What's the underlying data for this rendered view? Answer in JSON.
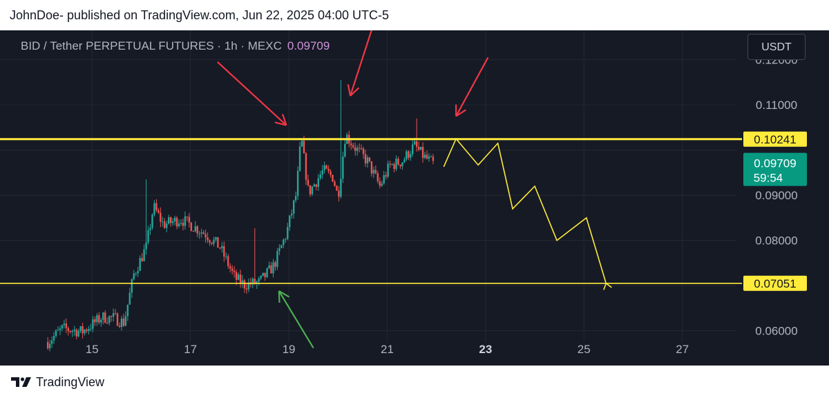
{
  "header": {
    "published": "JohnDoe- published on TradingView.com, Jun 22, 2025 04:00 UTC-5"
  },
  "symbol": {
    "title": "BID / Tether PERPETUAL FUTURES · 1h · MEXC",
    "price": "0.09709"
  },
  "currency_button": {
    "label": "USDT"
  },
  "colors": {
    "background": "#161a25",
    "up": "#26a69a",
    "down": "#ef5350",
    "level": "#ffeb3b",
    "arrow_red": "#f23645",
    "arrow_green": "#4caf50",
    "projection": "#ffeb3b",
    "price_tag": "#089981"
  },
  "chart_data": {
    "type": "candlestick",
    "x_ticks": [
      "15",
      "17",
      "19",
      "21",
      "23",
      "25",
      "27"
    ],
    "x_tick_days": [
      15,
      17,
      19,
      21,
      23,
      25,
      27
    ],
    "bold_tick": "23",
    "y_ticks": [
      "0.12000",
      "0.11000",
      "0.09000",
      "0.08000",
      "0.06000"
    ],
    "y_tick_values": [
      0.12,
      0.11,
      0.09,
      0.08,
      0.06
    ],
    "ylim": [
      0.0575,
      0.1265
    ],
    "xlim": [
      13.55,
      28.1
    ],
    "price_path": [
      [
        14.1,
        0.0575
      ],
      [
        14.4,
        0.0605
      ],
      [
        14.8,
        0.0598
      ],
      [
        15.2,
        0.063
      ],
      [
        15.45,
        0.0628
      ],
      [
        15.65,
        0.0618
      ],
      [
        15.85,
        0.0725
      ],
      [
        16.1,
        0.0785
      ],
      [
        16.25,
        0.0875
      ],
      [
        16.45,
        0.0835
      ],
      [
        16.8,
        0.0847
      ],
      [
        17.0,
        0.0835
      ],
      [
        17.3,
        0.0815
      ],
      [
        17.6,
        0.0785
      ],
      [
        17.9,
        0.0717
      ],
      [
        18.1,
        0.0702
      ],
      [
        18.4,
        0.0707
      ],
      [
        18.7,
        0.0745
      ],
      [
        18.95,
        0.0815
      ],
      [
        19.15,
        0.0902
      ],
      [
        19.25,
        0.1028
      ],
      [
        19.4,
        0.0905
      ],
      [
        19.7,
        0.0955
      ],
      [
        19.9,
        0.094
      ],
      [
        20.0,
        0.0895
      ],
      [
        20.15,
        0.1035
      ],
      [
        20.35,
        0.1005
      ],
      [
        20.6,
        0.0975
      ],
      [
        20.85,
        0.092
      ],
      [
        21.05,
        0.0965
      ],
      [
        21.3,
        0.0975
      ],
      [
        21.55,
        0.101
      ],
      [
        21.75,
        0.0985
      ],
      [
        21.95,
        0.0968
      ]
    ],
    "wick_spikes": [
      {
        "day": 16.1,
        "high": 0.0935
      },
      {
        "day": 18.3,
        "high": 0.0827
      },
      {
        "day": 20.05,
        "high": 0.1155
      },
      {
        "day": 21.6,
        "high": 0.107
      }
    ],
    "levels": [
      {
        "value": 0.10241,
        "label": "0.10241",
        "width": 3
      },
      {
        "value": 0.07051,
        "label": "0.07051",
        "width": 1.6
      }
    ],
    "last_price": {
      "value": 0.09709,
      "label": "0.09709",
      "countdown": "59:54"
    },
    "projection": [
      [
        22.15,
        0.0963
      ],
      [
        22.4,
        0.1025
      ],
      [
        22.85,
        0.0967
      ],
      [
        23.25,
        0.1015
      ],
      [
        23.55,
        0.087
      ],
      [
        24.0,
        0.092
      ],
      [
        24.45,
        0.08
      ],
      [
        25.05,
        0.085
      ],
      [
        25.45,
        0.0705
      ]
    ],
    "arrows": [
      {
        "color": "red",
        "from": [
          17.55,
          0.1195
        ],
        "to": [
          18.95,
          0.1055
        ]
      },
      {
        "color": "red",
        "from": [
          20.75,
          0.1288
        ],
        "to": [
          20.25,
          0.112
        ]
      },
      {
        "color": "red",
        "from": [
          23.05,
          0.1205
        ],
        "to": [
          22.4,
          0.1075
        ]
      },
      {
        "color": "green",
        "from": [
          19.5,
          0.0562
        ],
        "to": [
          18.8,
          0.0688
        ]
      }
    ]
  },
  "footer": {
    "brand": "TradingView"
  }
}
